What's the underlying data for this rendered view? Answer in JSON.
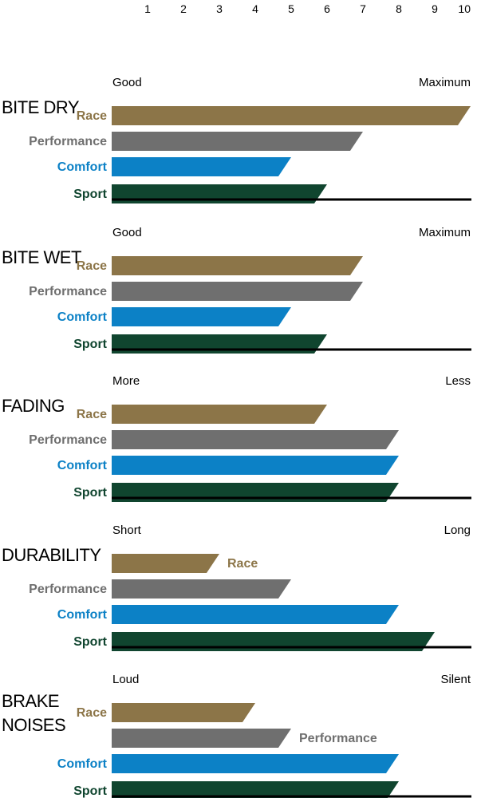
{
  "colors": {
    "Race": "#8c7548",
    "Performance": "#6f6f6f",
    "Comfort": "#0c81c6",
    "Sport": "#10452f",
    "axis": "#000000"
  },
  "chart_data": {
    "type": "bar",
    "orientation": "horizontal",
    "x_ticks": [
      "1",
      "2",
      "3",
      "4",
      "5",
      "6",
      "7",
      "8",
      "9",
      "10"
    ],
    "xlim": [
      0,
      10
    ],
    "grid": false,
    "panels": [
      {
        "title": "BITE DRY",
        "scale_low": "Good",
        "scale_high": "Maximum",
        "series": [
          {
            "name": "Race",
            "value": 10
          },
          {
            "name": "Performance",
            "value": 7
          },
          {
            "name": "Comfort",
            "value": 5
          },
          {
            "name": "Sport",
            "value": 6
          }
        ]
      },
      {
        "title": "BITE WET",
        "scale_low": "Good",
        "scale_high": "Maximum",
        "series": [
          {
            "name": "Race",
            "value": 7
          },
          {
            "name": "Performance",
            "value": 7
          },
          {
            "name": "Comfort",
            "value": 5
          },
          {
            "name": "Sport",
            "value": 6
          }
        ]
      },
      {
        "title": "FADING",
        "scale_low": "More",
        "scale_high": "Less",
        "series": [
          {
            "name": "Race",
            "value": 6
          },
          {
            "name": "Performance",
            "value": 8
          },
          {
            "name": "Comfort",
            "value": 8
          },
          {
            "name": "Sport",
            "value": 8
          }
        ]
      },
      {
        "title": "DURABILITY",
        "scale_low": "Short",
        "scale_high": "Long",
        "series": [
          {
            "name": "Race",
            "value": 3
          },
          {
            "name": "Performance",
            "value": 5
          },
          {
            "name": "Comfort",
            "value": 8
          },
          {
            "name": "Sport",
            "value": 9
          }
        ]
      },
      {
        "title": "BRAKE\nNOISES",
        "scale_low": "Loud",
        "scale_high": "Silent",
        "series": [
          {
            "name": "Race",
            "value": 4
          },
          {
            "name": "Performance",
            "value": 5
          },
          {
            "name": "Comfort",
            "value": 8
          },
          {
            "name": "Sport",
            "value": 8
          }
        ]
      }
    ]
  }
}
